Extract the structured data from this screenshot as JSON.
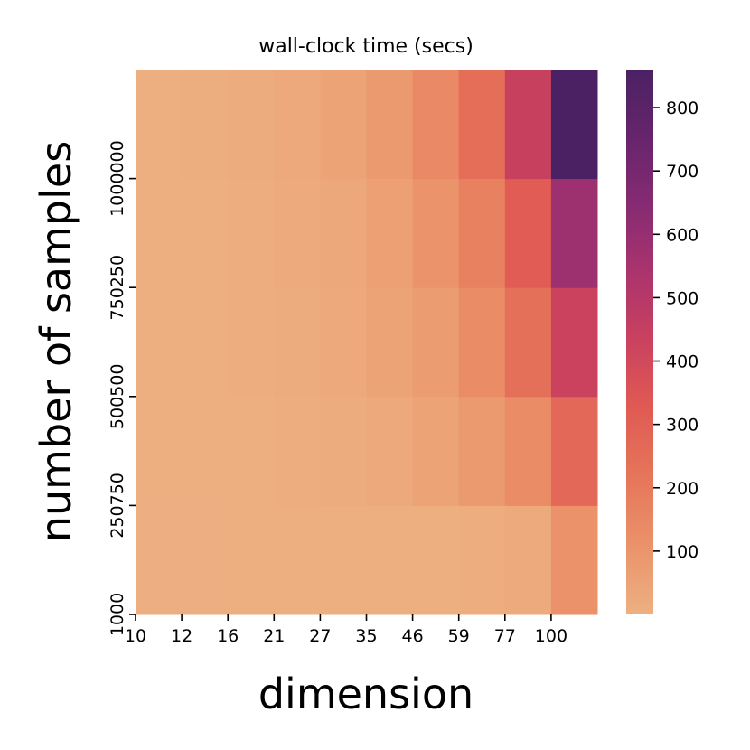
{
  "chart_data": {
    "type": "heatmap",
    "title": "wall-clock time (secs)",
    "xlabel": "dimension",
    "ylabel": "number of samples",
    "x_tick_labels": [
      "10",
      "12",
      "16",
      "21",
      "27",
      "35",
      "46",
      "59",
      "77",
      "100"
    ],
    "y_tick_labels": [
      "1000",
      "250750",
      "500500",
      "750250",
      "1000000"
    ],
    "rows_bottom_to_top": [
      [
        2,
        2,
        3,
        3,
        4,
        5,
        7,
        10,
        20,
        110
      ],
      [
        3,
        4,
        6,
        10,
        15,
        25,
        45,
        80,
        130,
        270
      ],
      [
        4,
        6,
        10,
        15,
        25,
        45,
        75,
        130,
        240,
        430
      ],
      [
        5,
        7,
        12,
        20,
        35,
        60,
        105,
        175,
        320,
        580
      ],
      [
        6,
        9,
        15,
        25,
        45,
        85,
        145,
        245,
        440,
        860
      ]
    ],
    "colorbar": {
      "min": 0,
      "max": 860,
      "ticks": [
        100,
        200,
        300,
        400,
        500,
        600,
        700,
        800
      ],
      "colormap": "flare",
      "color_low": "#edb081",
      "color_high": "#4b2163"
    }
  }
}
